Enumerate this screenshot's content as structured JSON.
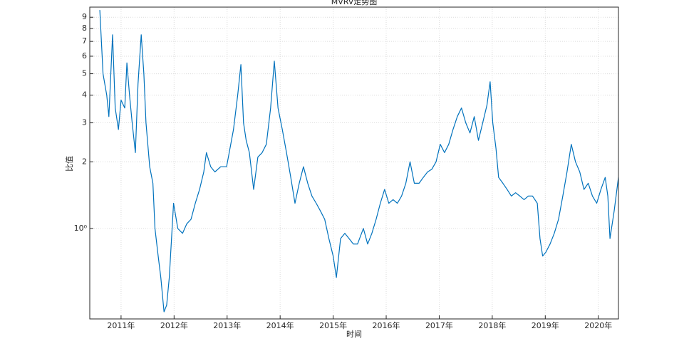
{
  "chart_data": {
    "type": "line",
    "title": "MVRV走势图",
    "x_label": "时间",
    "y_label": "比值",
    "log_y": true,
    "grid": true,
    "xlim": [
      2010.41,
      2020.38
    ],
    "ylim": [
      0.39,
      10
    ],
    "xticks": [
      {
        "value": 2011,
        "label": "2011年"
      },
      {
        "value": 2012,
        "label": "2012年"
      },
      {
        "value": 2013,
        "label": "2013年"
      },
      {
        "value": 2014,
        "label": "2014年"
      },
      {
        "value": 2015,
        "label": "2015年"
      },
      {
        "value": 2016,
        "label": "2016年"
      },
      {
        "value": 2017,
        "label": "2017年"
      },
      {
        "value": 2018,
        "label": "2018年"
      },
      {
        "value": 2019,
        "label": "2019年"
      },
      {
        "value": 2020,
        "label": "2020年"
      }
    ],
    "yticks": [
      {
        "value": 1,
        "label": "10⁰"
      },
      2,
      3,
      4,
      5,
      6,
      7,
      8,
      9
    ],
    "series": [
      {
        "name": "MVRV",
        "color": "#0072bd",
        "x": [
          2010.6,
          2010.66,
          2010.73,
          2010.77,
          2010.84,
          2010.89,
          2010.95,
          2011.0,
          2011.07,
          2011.11,
          2011.16,
          2011.21,
          2011.27,
          2011.32,
          2011.38,
          2011.43,
          2011.47,
          2011.54,
          2011.6,
          2011.64,
          2011.7,
          2011.75,
          2011.81,
          2011.86,
          2011.91,
          2011.99,
          2012.07,
          2012.16,
          2012.24,
          2012.32,
          2012.4,
          2012.48,
          2012.56,
          2012.61,
          2012.69,
          2012.77,
          2012.88,
          2012.99,
          2013.04,
          2013.12,
          2013.2,
          2013.26,
          2013.31,
          2013.36,
          2013.42,
          2013.5,
          2013.58,
          2013.66,
          2013.74,
          2013.82,
          2013.89,
          2013.96,
          2014.04,
          2014.12,
          2014.2,
          2014.28,
          2014.36,
          2014.44,
          2014.52,
          2014.6,
          2014.68,
          2014.76,
          2014.84,
          2014.92,
          2015.0,
          2015.06,
          2015.14,
          2015.22,
          2015.3,
          2015.38,
          2015.46,
          2015.57,
          2015.65,
          2015.73,
          2015.81,
          2015.89,
          2015.97,
          2016.05,
          2016.13,
          2016.21,
          2016.29,
          2016.37,
          2016.45,
          2016.53,
          2016.62,
          2016.7,
          2016.78,
          2016.86,
          2016.94,
          2017.02,
          2017.1,
          2017.18,
          2017.26,
          2017.34,
          2017.42,
          2017.5,
          2017.58,
          2017.66,
          2017.74,
          2017.82,
          2017.9,
          2017.96,
          2018.01,
          2018.07,
          2018.12,
          2018.2,
          2018.28,
          2018.36,
          2018.44,
          2018.52,
          2018.6,
          2018.68,
          2018.76,
          2018.85,
          2018.9,
          2018.95,
          2019.01,
          2019.09,
          2019.17,
          2019.25,
          2019.33,
          2019.41,
          2019.49,
          2019.57,
          2019.65,
          2019.73,
          2019.81,
          2019.89,
          2019.97,
          2020.05,
          2020.13,
          2020.18,
          2020.22,
          2020.3,
          2020.38
        ],
        "values": [
          9.7,
          5,
          4,
          3.2,
          7.5,
          3.5,
          2.8,
          3.8,
          3.5,
          5.6,
          4,
          3,
          2.2,
          4.5,
          7.5,
          5,
          3,
          1.9,
          1.6,
          1.0,
          0.75,
          0.6,
          0.42,
          0.45,
          0.6,
          1.3,
          1.0,
          0.95,
          1.05,
          1.1,
          1.3,
          1.5,
          1.8,
          2.2,
          1.9,
          1.8,
          1.9,
          1.9,
          2.2,
          2.8,
          4,
          5.5,
          3,
          2.5,
          2.2,
          1.5,
          2.1,
          2.2,
          2.4,
          3.5,
          5.7,
          3.5,
          2.8,
          2.2,
          1.7,
          1.3,
          1.6,
          1.9,
          1.6,
          1.4,
          1.3,
          1.2,
          1.1,
          0.9,
          0.75,
          0.6,
          0.9,
          0.95,
          0.9,
          0.85,
          0.85,
          1.0,
          0.85,
          0.95,
          1.1,
          1.3,
          1.5,
          1.3,
          1.35,
          1.3,
          1.4,
          1.6,
          2.0,
          1.6,
          1.6,
          1.7,
          1.8,
          1.85,
          2.0,
          2.4,
          2.2,
          2.4,
          2.8,
          3.2,
          3.5,
          3.0,
          2.7,
          3.2,
          2.5,
          3.0,
          3.6,
          4.6,
          3.0,
          2.3,
          1.7,
          1.6,
          1.5,
          1.4,
          1.45,
          1.4,
          1.35,
          1.4,
          1.4,
          1.3,
          0.9,
          0.75,
          0.78,
          0.85,
          0.95,
          1.1,
          1.4,
          1.8,
          2.4,
          2.0,
          1.8,
          1.5,
          1.6,
          1.4,
          1.3,
          1.5,
          1.7,
          1.4,
          0.9,
          1.2,
          1.7
        ]
      }
    ]
  }
}
